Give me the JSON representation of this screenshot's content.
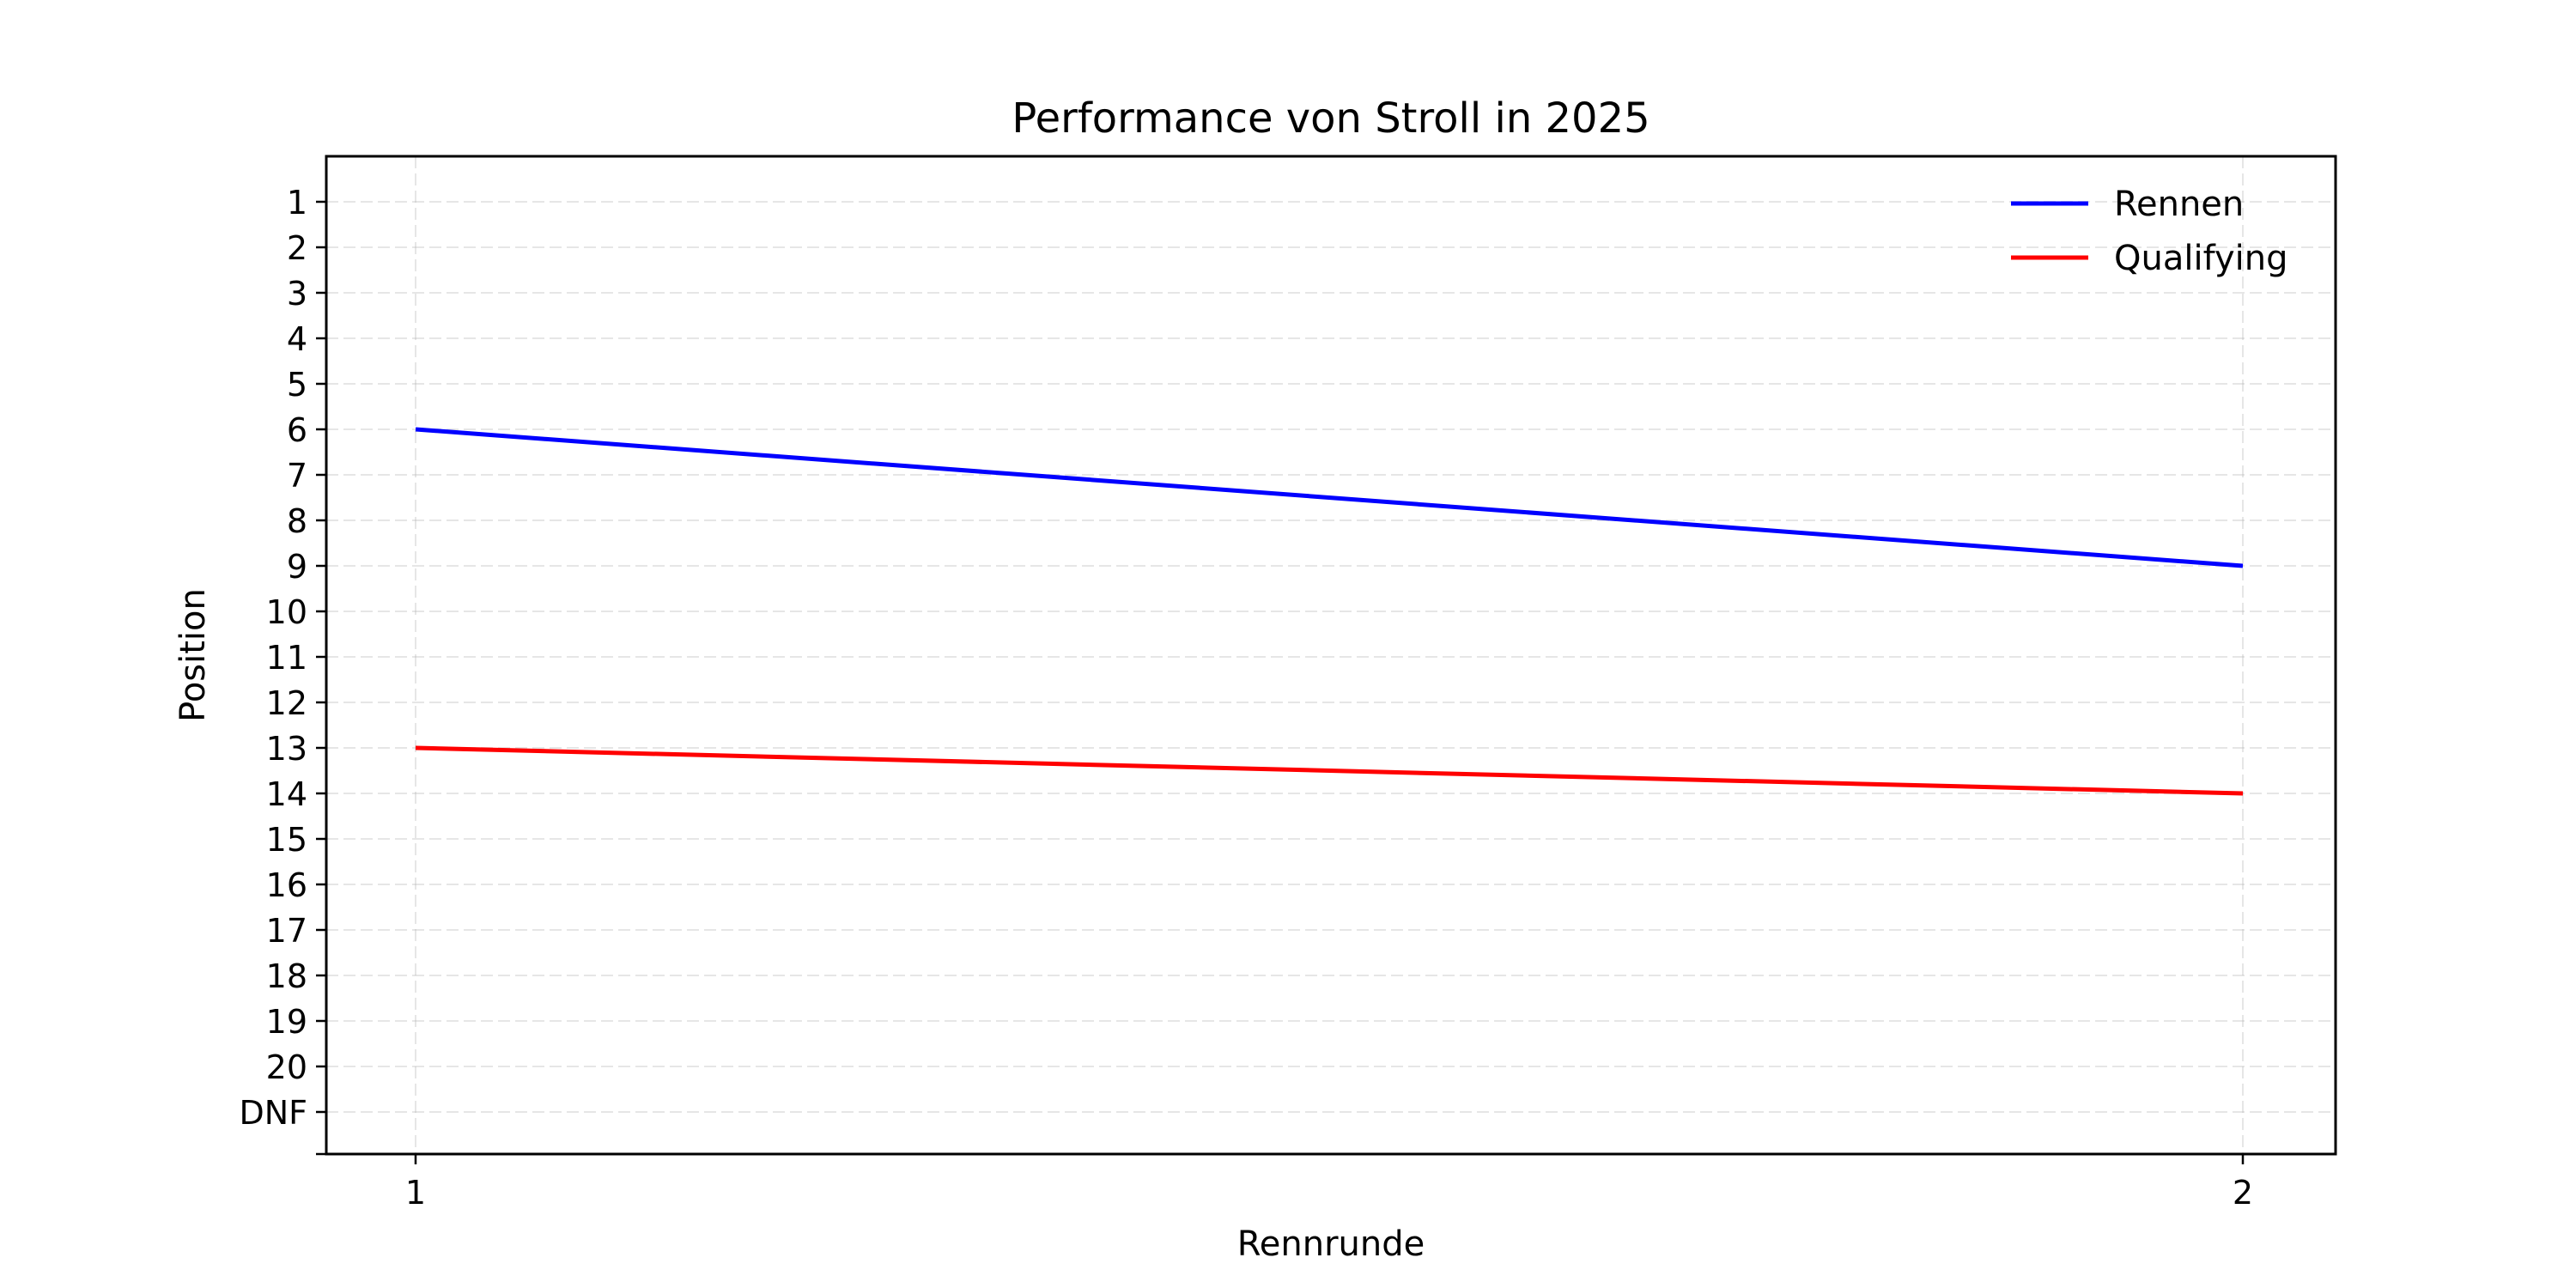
{
  "chart_data": {
    "type": "line",
    "title": "Performance von Stroll in 2025",
    "xlabel": "Rennrunde",
    "ylabel": "Position",
    "x": [
      1,
      2
    ],
    "x_ticks": [
      "1",
      "2"
    ],
    "y_ticks": [
      "1",
      "2",
      "3",
      "4",
      "5",
      "6",
      "7",
      "8",
      "9",
      "10",
      "11",
      "12",
      "13",
      "14",
      "15",
      "16",
      "17",
      "18",
      "19",
      "20",
      "DNF"
    ],
    "y_inverted": true,
    "grid": true,
    "legend": "top-right",
    "series": [
      {
        "name": "Rennen",
        "color": "#0000ff",
        "values": [
          6,
          9
        ]
      },
      {
        "name": "Qualifying",
        "color": "#ff0000",
        "values": [
          13,
          14
        ]
      }
    ]
  }
}
